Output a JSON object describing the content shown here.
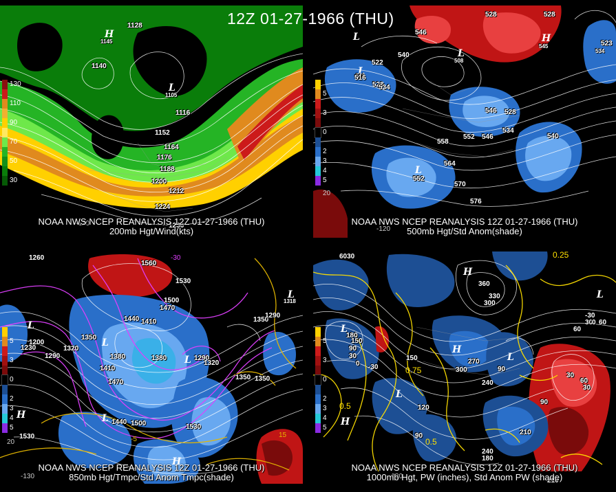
{
  "title": "12Z 01-27-1966 (THU)",
  "colors": {
    "wind_greens": [
      "#0a7d0a",
      "#25b425",
      "#6ee84a"
    ],
    "wind_yellow": "#ffd000",
    "wind_orange": "#e08a1e",
    "wind_red": "#cc1a1a",
    "anom_blue": "#2a6fc9",
    "anom_lightblue": "#68a8f0",
    "anom_red": "#c01515",
    "anom_darkred": "#7a0b0b",
    "contour": "#ffffff",
    "temp_contour": "#d040ff",
    "pw_contour": "#ffe000"
  },
  "panels": [
    {
      "id": "200mb",
      "caption1": "NOAA NWS NCEP REANALYSIS 12Z 01-27-1966 (THU)",
      "caption2": "200mb Hgt/Wind(kts)",
      "legend": [
        {
          "label": "130",
          "color": "#8a1010"
        },
        {
          "label": "",
          "color": "#cc1a1a"
        },
        {
          "label": "110",
          "color": "#e08a1e"
        },
        {
          "label": "",
          "color": "#f0b030"
        },
        {
          "label": "90",
          "color": "#ffd000"
        },
        {
          "label": "",
          "color": "#ffe860"
        },
        {
          "label": "70",
          "color": "#6ee84a"
        },
        {
          "label": "",
          "color": "#25b425"
        },
        {
          "label": "50",
          "color": "#14901a"
        },
        {
          "label": "",
          "color": "#0a7d0a"
        },
        {
          "label": "30",
          "color": "#065a06"
        }
      ],
      "labels": [
        "1128",
        "1140",
        "1116",
        "1152",
        "1164",
        "1176",
        "1188",
        "1200",
        "1212",
        "1224",
        "1236",
        "1145",
        "1105"
      ],
      "highs": [
        "H"
      ],
      "lows": [
        "L"
      ],
      "grid": [
        "-120",
        "-90"
      ]
    },
    {
      "id": "500mb",
      "caption1": "NOAA NWS NCEP REANALYSIS 12Z 01-27-1966 (THU)",
      "caption2": "500mb Hgt/Std Anom(shade)",
      "legend": [
        {
          "label": "",
          "color": "#ffd000"
        },
        {
          "label": "5",
          "color": "#e08a1e"
        },
        {
          "label": "",
          "color": "#cc1a1a"
        },
        {
          "label": "3",
          "color": "#a01010"
        },
        {
          "label": "",
          "color": "#7a0b0b"
        },
        {
          "label": "0",
          "color": "#000000"
        },
        {
          "label": "",
          "color": "#1d4f94"
        },
        {
          "label": "2",
          "color": "#2a6fc9"
        },
        {
          "label": "3",
          "color": "#68a8f0"
        },
        {
          "label": "4",
          "color": "#25c8d8"
        },
        {
          "label": "5",
          "color": "#8a2be2"
        }
      ],
      "labels": [
        "528",
        "528",
        "546",
        "540",
        "522",
        "516",
        "528",
        "534",
        "558",
        "552",
        "546",
        "534",
        "528",
        "540",
        "564",
        "570",
        "576",
        "552",
        "516",
        "508",
        "546",
        "545",
        "534",
        "523"
      ],
      "highs": [
        "H"
      ],
      "lows": [
        "L",
        "L",
        "L",
        "L"
      ],
      "grid": [
        "-120",
        "20"
      ]
    },
    {
      "id": "850mb",
      "caption1": "NOAA NWS NCEP REANALYSIS 12Z 01-27-1966 (THU)",
      "caption2": "850mb Hgt/Tmpc/Std Anom Tmpc(shade)",
      "legend": [
        {
          "label": "",
          "color": "#ffd000"
        },
        {
          "label": "5",
          "color": "#e08a1e"
        },
        {
          "label": "",
          "color": "#cc1a1a"
        },
        {
          "label": "3",
          "color": "#a01010"
        },
        {
          "label": "",
          "color": "#7a0b0b"
        },
        {
          "label": "0",
          "color": "#000000"
        },
        {
          "label": "",
          "color": "#1d4f94"
        },
        {
          "label": "2",
          "color": "#2a6fc9"
        },
        {
          "label": "3",
          "color": "#68a8f0"
        },
        {
          "label": "4",
          "color": "#25c8d8"
        },
        {
          "label": "5",
          "color": "#8a2be2"
        }
      ],
      "labels": [
        "1260",
        "1560",
        "1530",
        "1500",
        "1470",
        "1440",
        "1410",
        "1380",
        "1350",
        "1320",
        "1290",
        "1260",
        "1350",
        "1290",
        "1200",
        "1230",
        "1290",
        "1320",
        "1410",
        "1470",
        "1380",
        "1440",
        "1500",
        "1530",
        "1530",
        "1350",
        "1290",
        "1320",
        "1380",
        "1350",
        "1500",
        "1560",
        "1260",
        "1530",
        "1318"
      ],
      "highs": [
        "H",
        "H"
      ],
      "lows": [
        "L",
        "L",
        "L",
        "L",
        "L"
      ],
      "grid": [
        "-130",
        "20",
        "-30",
        "-5",
        "15",
        "5"
      ]
    },
    {
      "id": "1000mb",
      "caption1": "NOAA NWS NCEP REANALYSIS 12Z 01-27-1966 (THU)",
      "caption2": "1000mb Hgt, PW (inches), Std Anom PW (shade)",
      "legend": [
        {
          "label": "",
          "color": "#ffd000"
        },
        {
          "label": "5",
          "color": "#e08a1e"
        },
        {
          "label": "",
          "color": "#cc1a1a"
        },
        {
          "label": "3",
          "color": "#a01010"
        },
        {
          "label": "",
          "color": "#7a0b0b"
        },
        {
          "label": "0",
          "color": "#000000"
        },
        {
          "label": "",
          "color": "#1d4f94"
        },
        {
          "label": "2",
          "color": "#2a6fc9"
        },
        {
          "label": "3",
          "color": "#68a8f0"
        },
        {
          "label": "4",
          "color": "#25c8d8"
        },
        {
          "label": "5",
          "color": "#8a2be2"
        }
      ],
      "labels": [
        "6030",
        "360",
        "330",
        "300",
        "180",
        "150",
        "90",
        "30",
        "0",
        "-30",
        "270",
        "300",
        "240",
        "150",
        "60",
        "30",
        "-30",
        "90",
        "120",
        "90",
        "60",
        "90",
        "210",
        "180",
        "270",
        "300",
        "210",
        "180",
        "300",
        "330",
        "270",
        "240",
        "60",
        "0",
        "30",
        "60",
        "30",
        "90",
        "-30",
        "-30",
        "330",
        "270",
        "240",
        "270",
        "30"
      ],
      "pw_labels": [
        "0.25",
        "0.5",
        "0.5",
        "0.25",
        "0.75",
        "0.5",
        "0.75",
        "0.25"
      ],
      "highs": [
        "H",
        "H",
        "H"
      ],
      "lows": [
        "L",
        "L",
        "L",
        "L"
      ],
      "grid": [
        "-120",
        "90"
      ]
    }
  ]
}
